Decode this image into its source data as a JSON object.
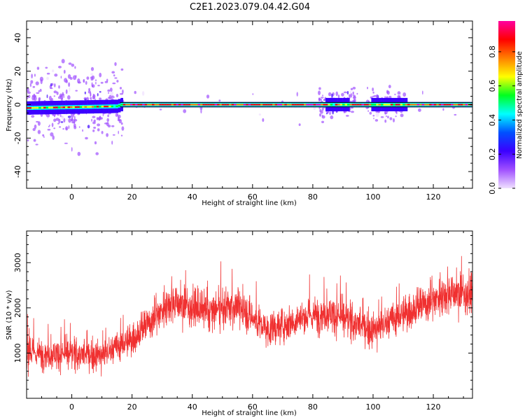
{
  "title": "C2E1.2023.079.04.42.G04",
  "chart_data": [
    {
      "type": "heatmap",
      "xlabel": "Height of straight line (km)",
      "ylabel": "Frequency (Hz)",
      "xlim": [
        -15,
        133
      ],
      "ylim": [
        -50,
        50
      ],
      "xticks": [
        "0",
        "20",
        "40",
        "60",
        "80",
        "100",
        "120"
      ],
      "xtick_values": [
        0,
        20,
        40,
        60,
        80,
        100,
        120
      ],
      "yticks": [
        "-40",
        "-20",
        "0",
        "20",
        "40"
      ],
      "ytick_values": [
        -40,
        -20,
        0,
        20,
        40
      ],
      "ridge": [
        {
          "x": -15,
          "y": -2
        },
        {
          "x": 15,
          "y": -1
        },
        {
          "x": 16,
          "y": 0
        },
        {
          "x": 133,
          "y": 0
        }
      ],
      "colorbar": {
        "label": "Normalized spectral amplitude",
        "ticks": [
          "0.0",
          "0.2",
          "0.4",
          "0.6",
          "0.8"
        ],
        "tick_values": [
          0.0,
          0.2,
          0.4,
          0.6,
          0.8
        ],
        "range": [
          0,
          0.98
        ],
        "colors": [
          "#f0e0ff",
          "#a050ff",
          "#3b00ff",
          "#0050ff",
          "#00ffff",
          "#00ff20",
          "#ffff00",
          "#ff8000",
          "#ff0000",
          "#ff00a0"
        ]
      }
    },
    {
      "type": "line",
      "xlabel": "Height of straight line (km)",
      "ylabel": "SNR (10 * v/v)",
      "xlim": [
        -15,
        133
      ],
      "ylim": [
        0,
        3700
      ],
      "xticks": [
        "0",
        "20",
        "40",
        "60",
        "80",
        "100",
        "120"
      ],
      "xtick_values": [
        0,
        20,
        40,
        60,
        80,
        100,
        120
      ],
      "yticks": [
        "1000",
        "2000",
        "3000"
      ],
      "ytick_values": [
        1000,
        2000,
        3000
      ],
      "color": "#f03030",
      "trend": [
        {
          "x": -15,
          "y": 1000
        },
        {
          "x": 10,
          "y": 950
        },
        {
          "x": 20,
          "y": 1300
        },
        {
          "x": 33,
          "y": 2150
        },
        {
          "x": 45,
          "y": 1900
        },
        {
          "x": 55,
          "y": 2050
        },
        {
          "x": 65,
          "y": 1500
        },
        {
          "x": 75,
          "y": 1750
        },
        {
          "x": 85,
          "y": 1900
        },
        {
          "x": 100,
          "y": 1500
        },
        {
          "x": 110,
          "y": 1850
        },
        {
          "x": 125,
          "y": 2350
        },
        {
          "x": 133,
          "y": 2300
        }
      ]
    }
  ]
}
